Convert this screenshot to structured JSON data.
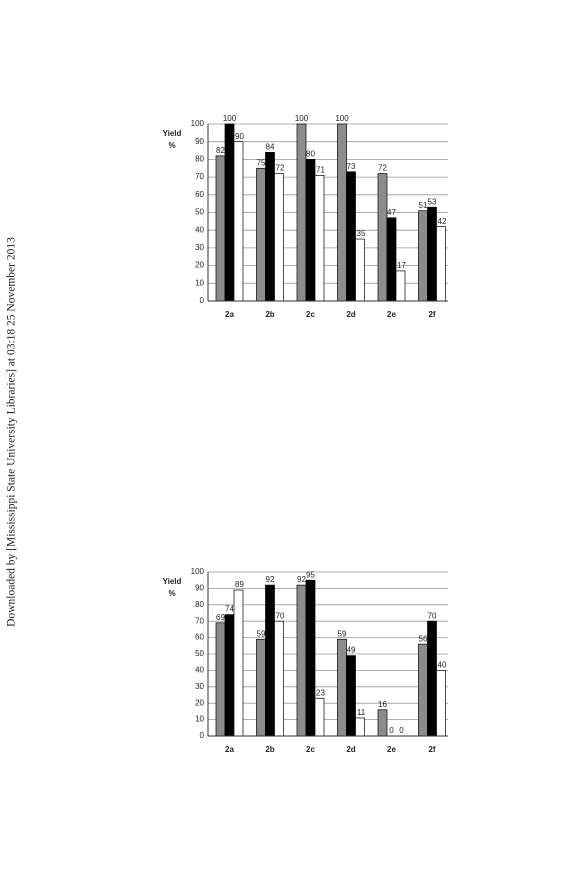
{
  "watermark": "Downloaded by [Mississippi State University Libraries] at 03:18 25 November 2013",
  "chart_data": [
    {
      "type": "bar",
      "ylabel": [
        "Yield",
        "%"
      ],
      "categories": [
        "2a",
        "2b",
        "2c",
        "2d",
        "2e",
        "2f"
      ],
      "series": [
        {
          "color": "#8c8c8c",
          "values": [
            82,
            75,
            100,
            100,
            72,
            51
          ]
        },
        {
          "color": "#000000",
          "values": [
            100,
            84,
            80,
            73,
            47,
            53
          ]
        },
        {
          "color": "#ffffff",
          "values": [
            90,
            72,
            71,
            35,
            17,
            42
          ]
        }
      ],
      "ylim": [
        0,
        100
      ],
      "yticks": [
        0,
        10,
        20,
        30,
        40,
        50,
        60,
        70,
        80,
        90,
        100
      ],
      "grid": true
    },
    {
      "type": "bar",
      "ylabel": [
        "Yield",
        "%"
      ],
      "categories": [
        "2a",
        "2b",
        "2c",
        "2d",
        "2e",
        "2f"
      ],
      "series": [
        {
          "color": "#8c8c8c",
          "values": [
            69,
            59,
            92,
            59,
            16,
            56
          ]
        },
        {
          "color": "#000000",
          "values": [
            74,
            92,
            95,
            49,
            0,
            70
          ]
        },
        {
          "color": "#ffffff",
          "values": [
            89,
            70,
            23,
            11,
            0,
            40
          ]
        }
      ],
      "ylim": [
        0,
        100
      ],
      "yticks": [
        0,
        10,
        20,
        30,
        40,
        50,
        60,
        70,
        80,
        90,
        100
      ],
      "grid": true
    }
  ]
}
